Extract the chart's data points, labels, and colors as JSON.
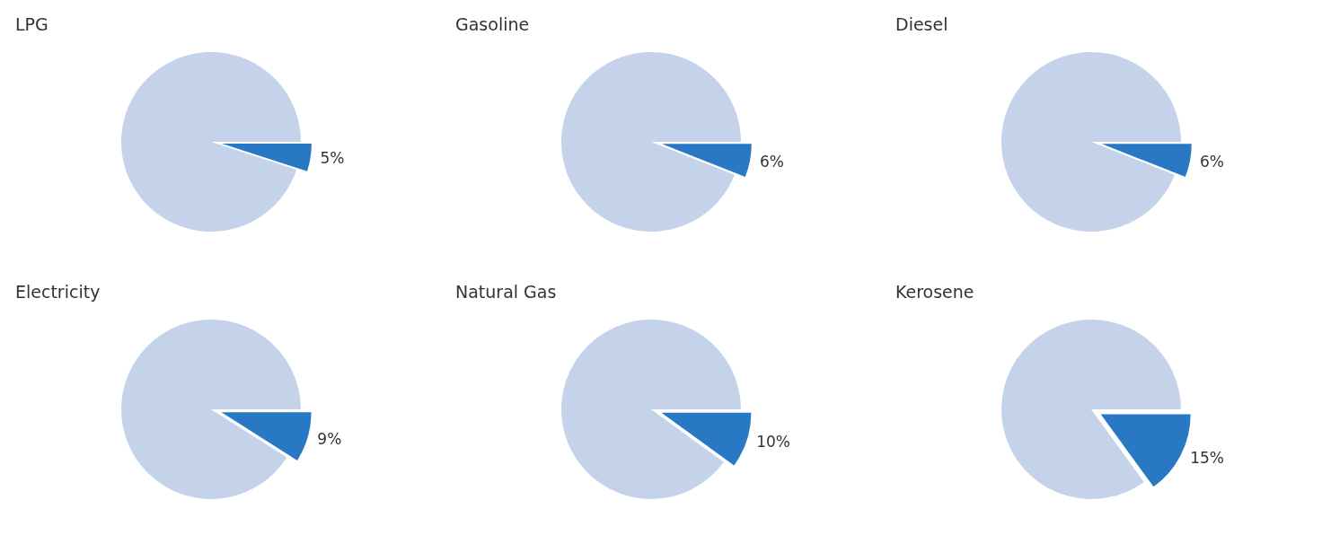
{
  "chart_data": [
    {
      "type": "pie",
      "title": "LPG",
      "categories": [
        null,
        null
      ],
      "values": [
        5,
        95
      ],
      "colors": [
        "#2878c3",
        "#c5d3ea"
      ],
      "value_labels": [
        "5%",
        null
      ]
    },
    {
      "type": "pie",
      "title": "Gasoline",
      "categories": [
        null,
        null
      ],
      "values": [
        6,
        94
      ],
      "colors": [
        "#2878c3",
        "#c5d3ea"
      ],
      "value_labels": [
        "6%",
        null
      ]
    },
    {
      "type": "pie",
      "title": "Diesel",
      "categories": [
        null,
        null
      ],
      "values": [
        6,
        94
      ],
      "colors": [
        "#2878c3",
        "#c5d3ea"
      ],
      "value_labels": [
        "6%",
        null
      ]
    },
    {
      "type": "pie",
      "title": "Electricity",
      "categories": [
        null,
        null
      ],
      "values": [
        9,
        91
      ],
      "colors": [
        "#2878c3",
        "#c5d3ea"
      ],
      "value_labels": [
        "9%",
        null
      ]
    },
    {
      "type": "pie",
      "title": "Natural Gas",
      "categories": [
        null,
        null
      ],
      "values": [
        10,
        90
      ],
      "colors": [
        "#2878c3",
        "#c5d3ea"
      ],
      "value_labels": [
        "10%",
        null
      ]
    },
    {
      "type": "pie",
      "title": "Kerosene",
      "categories": [
        null,
        null
      ],
      "values": [
        15,
        85
      ],
      "colors": [
        "#2878c3",
        "#c5d3ea"
      ],
      "value_labels": [
        "15%",
        null
      ]
    }
  ]
}
